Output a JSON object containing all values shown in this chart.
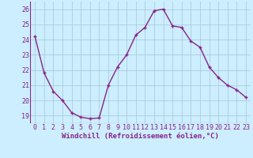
{
  "x": [
    0,
    1,
    2,
    3,
    4,
    5,
    6,
    7,
    8,
    9,
    10,
    11,
    12,
    13,
    14,
    15,
    16,
    17,
    18,
    19,
    20,
    21,
    22,
    23
  ],
  "y": [
    24.2,
    21.8,
    20.6,
    20.0,
    19.2,
    18.9,
    18.8,
    18.85,
    21.0,
    22.2,
    23.0,
    24.3,
    24.8,
    25.9,
    26.0,
    24.9,
    24.8,
    23.9,
    23.5,
    22.2,
    21.5,
    21.0,
    20.7,
    20.2
  ],
  "line_color": "#882288",
  "marker": "+",
  "bg_color": "#cceeff",
  "grid_color": "#aaccdd",
  "xlabel": "Windchill (Refroidissement éolien,°C)",
  "ylim": [
    18.5,
    26.5
  ],
  "xlim": [
    -0.5,
    23.5
  ],
  "yticks": [
    19,
    20,
    21,
    22,
    23,
    24,
    25,
    26
  ],
  "xticks": [
    0,
    1,
    2,
    3,
    4,
    5,
    6,
    7,
    8,
    9,
    10,
    11,
    12,
    13,
    14,
    15,
    16,
    17,
    18,
    19,
    20,
    21,
    22,
    23
  ],
  "xlabel_fontsize": 6.5,
  "tick_fontsize": 6,
  "marker_size": 3,
  "line_width": 1.0
}
